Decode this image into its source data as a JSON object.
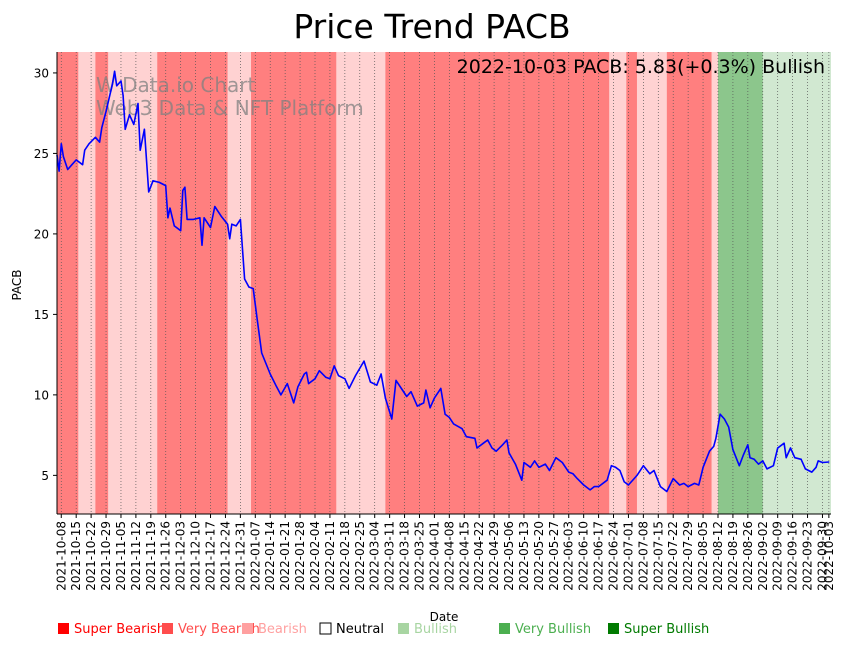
{
  "chart_data": {
    "type": "line",
    "title": "Price Trend PACB",
    "xlabel": "Date",
    "ylabel": "PACB",
    "ylim": [
      2.6,
      31.3
    ],
    "yticks": [
      5,
      10,
      15,
      20,
      25,
      30
    ],
    "annotation": "2022-10-03 PACB: 5.83(+0.3%) Bullish",
    "watermark": [
      "W Data.io Chart",
      "Web3 Data & NFT Platform"
    ],
    "x_start": "2021-10-06",
    "x_end": "2022-10-04",
    "xticks": [
      "2021-10-08",
      "2021-10-15",
      "2021-10-22",
      "2021-10-29",
      "2021-11-05",
      "2021-11-12",
      "2021-11-19",
      "2021-11-26",
      "2021-12-03",
      "2021-12-10",
      "2021-12-17",
      "2021-12-24",
      "2021-12-31",
      "2022-01-07",
      "2022-01-14",
      "2022-01-21",
      "2022-01-28",
      "2022-02-04",
      "2022-02-11",
      "2022-02-18",
      "2022-02-25",
      "2022-03-04",
      "2022-03-11",
      "2022-03-18",
      "2022-03-25",
      "2022-04-01",
      "2022-04-08",
      "2022-04-15",
      "2022-04-22",
      "2022-04-29",
      "2022-05-06",
      "2022-05-13",
      "2022-05-20",
      "2022-05-27",
      "2022-06-03",
      "2022-06-10",
      "2022-06-17",
      "2022-06-24",
      "2022-07-01",
      "2022-07-08",
      "2022-07-15",
      "2022-07-22",
      "2022-07-29",
      "2022-08-05",
      "2022-08-12",
      "2022-08-19",
      "2022-08-26",
      "2022-09-02",
      "2022-09-09",
      "2022-09-16",
      "2022-09-23",
      "2022-09-30",
      "2022-10-03"
    ],
    "legend": [
      {
        "label": "Super Bearish",
        "color": "#ff0000"
      },
      {
        "label": "Very Bearish",
        "color": "#ff4d4d"
      },
      {
        "label": "Bearish",
        "color": "#ffa0a0"
      },
      {
        "label": "Neutral",
        "color": "#000000"
      },
      {
        "label": "Bullish",
        "color": "#a8d5a2"
      },
      {
        "label": "Very Bullish",
        "color": "#4caf50"
      },
      {
        "label": "Super Bullish",
        "color": "#007a00"
      }
    ],
    "sentiment_bands": [
      {
        "start": "2021-10-06",
        "end": "2021-10-16",
        "sentiment": "Very Bearish"
      },
      {
        "start": "2021-10-16",
        "end": "2021-10-24",
        "sentiment": "Bearish"
      },
      {
        "start": "2021-10-24",
        "end": "2021-10-30",
        "sentiment": "Very Bearish"
      },
      {
        "start": "2021-10-30",
        "end": "2021-11-22",
        "sentiment": "Bearish"
      },
      {
        "start": "2021-11-22",
        "end": "2021-12-25",
        "sentiment": "Very Bearish"
      },
      {
        "start": "2021-12-25",
        "end": "2022-01-05",
        "sentiment": "Bearish"
      },
      {
        "start": "2022-01-05",
        "end": "2022-02-14",
        "sentiment": "Very Bearish"
      },
      {
        "start": "2022-02-14",
        "end": "2022-03-09",
        "sentiment": "Bearish"
      },
      {
        "start": "2022-03-09",
        "end": "2022-06-22",
        "sentiment": "Very Bearish"
      },
      {
        "start": "2022-06-22",
        "end": "2022-06-30",
        "sentiment": "Bearish"
      },
      {
        "start": "2022-06-30",
        "end": "2022-07-05",
        "sentiment": "Very Bearish"
      },
      {
        "start": "2022-07-05",
        "end": "2022-07-19",
        "sentiment": "Bearish"
      },
      {
        "start": "2022-07-19",
        "end": "2022-08-09",
        "sentiment": "Very Bearish"
      },
      {
        "start": "2022-08-09",
        "end": "2022-08-12",
        "sentiment": "Bearish"
      },
      {
        "start": "2022-08-12",
        "end": "2022-09-02",
        "sentiment": "Very Bullish"
      },
      {
        "start": "2022-09-02",
        "end": "2022-10-04",
        "sentiment": "Bullish"
      }
    ],
    "series": [
      {
        "name": "PACB",
        "color": "#0000ff",
        "points": [
          [
            "2021-10-06",
            24.9
          ],
          [
            "2021-10-07",
            23.9
          ],
          [
            "2021-10-08",
            25.6
          ],
          [
            "2021-10-09",
            24.8
          ],
          [
            "2021-10-11",
            24.0
          ],
          [
            "2021-10-13",
            24.3
          ],
          [
            "2021-10-15",
            24.6
          ],
          [
            "2021-10-18",
            24.3
          ],
          [
            "2021-10-19",
            25.2
          ],
          [
            "2021-10-21",
            25.6
          ],
          [
            "2021-10-24",
            26.0
          ],
          [
            "2021-10-26",
            25.7
          ],
          [
            "2021-10-27",
            26.6
          ],
          [
            "2021-10-29",
            27.6
          ],
          [
            "2021-11-01",
            29.3
          ],
          [
            "2021-11-02",
            30.1
          ],
          [
            "2021-11-03",
            29.2
          ],
          [
            "2021-11-05",
            29.5
          ],
          [
            "2021-11-06",
            28.6
          ],
          [
            "2021-11-07",
            26.5
          ],
          [
            "2021-11-09",
            27.4
          ],
          [
            "2021-11-11",
            26.8
          ],
          [
            "2021-11-13",
            28.1
          ],
          [
            "2021-11-14",
            25.2
          ],
          [
            "2021-11-16",
            26.5
          ],
          [
            "2021-11-18",
            22.6
          ],
          [
            "2021-11-20",
            23.3
          ],
          [
            "2021-11-23",
            23.2
          ],
          [
            "2021-11-26",
            23.0
          ],
          [
            "2021-11-27",
            21.0
          ],
          [
            "2021-11-28",
            21.6
          ],
          [
            "2021-11-30",
            20.5
          ],
          [
            "2021-12-03",
            20.2
          ],
          [
            "2021-12-04",
            22.7
          ],
          [
            "2021-12-05",
            22.9
          ],
          [
            "2021-12-06",
            20.9
          ],
          [
            "2021-12-09",
            20.9
          ],
          [
            "2021-12-12",
            21.0
          ],
          [
            "2021-12-13",
            19.3
          ],
          [
            "2021-12-14",
            21.0
          ],
          [
            "2021-12-17",
            20.4
          ],
          [
            "2021-12-19",
            21.7
          ],
          [
            "2021-12-22",
            21.1
          ],
          [
            "2021-12-25",
            20.6
          ],
          [
            "2021-12-26",
            19.7
          ],
          [
            "2021-12-27",
            20.6
          ],
          [
            "2021-12-29",
            20.5
          ],
          [
            "2021-12-31",
            20.9
          ],
          [
            "2022-01-02",
            17.2
          ],
          [
            "2022-01-04",
            16.7
          ],
          [
            "2022-01-06",
            16.6
          ],
          [
            "2022-01-08",
            14.6
          ],
          [
            "2022-01-10",
            12.6
          ],
          [
            "2022-01-14",
            11.3
          ],
          [
            "2022-01-17",
            10.5
          ],
          [
            "2022-01-19",
            10.0
          ],
          [
            "2022-01-22",
            10.7
          ],
          [
            "2022-01-25",
            9.5
          ],
          [
            "2022-01-27",
            10.5
          ],
          [
            "2022-01-30",
            11.3
          ],
          [
            "2022-01-31",
            11.4
          ],
          [
            "2022-02-01",
            10.7
          ],
          [
            "2022-02-04",
            11.0
          ],
          [
            "2022-02-06",
            11.5
          ],
          [
            "2022-02-09",
            11.1
          ],
          [
            "2022-02-11",
            11.0
          ],
          [
            "2022-02-13",
            11.8
          ],
          [
            "2022-02-15",
            11.2
          ],
          [
            "2022-02-18",
            11.0
          ],
          [
            "2022-02-20",
            10.4
          ],
          [
            "2022-02-23",
            11.2
          ],
          [
            "2022-02-27",
            12.1
          ],
          [
            "2022-03-02",
            10.8
          ],
          [
            "2022-03-05",
            10.6
          ],
          [
            "2022-03-07",
            11.3
          ],
          [
            "2022-03-09",
            9.8
          ],
          [
            "2022-03-12",
            8.5
          ],
          [
            "2022-03-14",
            10.9
          ],
          [
            "2022-03-17",
            10.3
          ],
          [
            "2022-03-19",
            9.9
          ],
          [
            "2022-03-21",
            10.2
          ],
          [
            "2022-03-24",
            9.3
          ],
          [
            "2022-03-27",
            9.5
          ],
          [
            "2022-03-28",
            10.3
          ],
          [
            "2022-03-30",
            9.2
          ],
          [
            "2022-04-01",
            9.8
          ],
          [
            "2022-04-04",
            10.4
          ],
          [
            "2022-04-06",
            8.8
          ],
          [
            "2022-04-08",
            8.6
          ],
          [
            "2022-04-10",
            8.2
          ],
          [
            "2022-04-14",
            7.9
          ],
          [
            "2022-04-16",
            7.4
          ],
          [
            "2022-04-20",
            7.3
          ],
          [
            "2022-04-21",
            6.7
          ],
          [
            "2022-04-24",
            7.0
          ],
          [
            "2022-04-26",
            7.2
          ],
          [
            "2022-04-28",
            6.7
          ],
          [
            "2022-04-30",
            6.5
          ],
          [
            "2022-05-03",
            6.9
          ],
          [
            "2022-05-05",
            7.2
          ],
          [
            "2022-05-06",
            6.4
          ],
          [
            "2022-05-09",
            5.7
          ],
          [
            "2022-05-12",
            4.7
          ],
          [
            "2022-05-13",
            5.8
          ],
          [
            "2022-05-16",
            5.5
          ],
          [
            "2022-05-18",
            5.9
          ],
          [
            "2022-05-20",
            5.5
          ],
          [
            "2022-05-23",
            5.7
          ],
          [
            "2022-05-25",
            5.3
          ],
          [
            "2022-05-28",
            6.1
          ],
          [
            "2022-05-31",
            5.8
          ],
          [
            "2022-06-03",
            5.2
          ],
          [
            "2022-06-05",
            5.1
          ],
          [
            "2022-06-07",
            4.8
          ],
          [
            "2022-06-10",
            4.4
          ],
          [
            "2022-06-13",
            4.1
          ],
          [
            "2022-06-15",
            4.3
          ],
          [
            "2022-06-17",
            4.3
          ],
          [
            "2022-06-21",
            4.7
          ],
          [
            "2022-06-23",
            5.6
          ],
          [
            "2022-06-25",
            5.5
          ],
          [
            "2022-06-27",
            5.3
          ],
          [
            "2022-06-29",
            4.6
          ],
          [
            "2022-07-01",
            4.4
          ],
          [
            "2022-07-05",
            5.0
          ],
          [
            "2022-07-08",
            5.6
          ],
          [
            "2022-07-11",
            5.1
          ],
          [
            "2022-07-13",
            5.3
          ],
          [
            "2022-07-16",
            4.3
          ],
          [
            "2022-07-19",
            4.0
          ],
          [
            "2022-07-22",
            4.8
          ],
          [
            "2022-07-25",
            4.4
          ],
          [
            "2022-07-27",
            4.5
          ],
          [
            "2022-07-29",
            4.3
          ],
          [
            "2022-08-01",
            4.5
          ],
          [
            "2022-08-03",
            4.4
          ],
          [
            "2022-08-05",
            5.5
          ],
          [
            "2022-08-08",
            6.5
          ],
          [
            "2022-08-10",
            6.8
          ],
          [
            "2022-08-11",
            7.3
          ],
          [
            "2022-08-13",
            8.8
          ],
          [
            "2022-08-15",
            8.5
          ],
          [
            "2022-08-17",
            8.0
          ],
          [
            "2022-08-19",
            6.6
          ],
          [
            "2022-08-22",
            5.6
          ],
          [
            "2022-08-24",
            6.3
          ],
          [
            "2022-08-26",
            6.9
          ],
          [
            "2022-08-27",
            6.1
          ],
          [
            "2022-08-29",
            6.0
          ],
          [
            "2022-08-31",
            5.7
          ],
          [
            "2022-09-02",
            5.9
          ],
          [
            "2022-09-04",
            5.4
          ],
          [
            "2022-09-07",
            5.6
          ],
          [
            "2022-09-09",
            6.7
          ],
          [
            "2022-09-12",
            7.0
          ],
          [
            "2022-09-13",
            6.1
          ],
          [
            "2022-09-15",
            6.7
          ],
          [
            "2022-09-17",
            6.1
          ],
          [
            "2022-09-20",
            6.0
          ],
          [
            "2022-09-22",
            5.4
          ],
          [
            "2022-09-25",
            5.2
          ],
          [
            "2022-09-27",
            5.5
          ],
          [
            "2022-09-28",
            5.9
          ],
          [
            "2022-09-30",
            5.8
          ],
          [
            "2022-10-03",
            5.83
          ]
        ]
      }
    ]
  }
}
